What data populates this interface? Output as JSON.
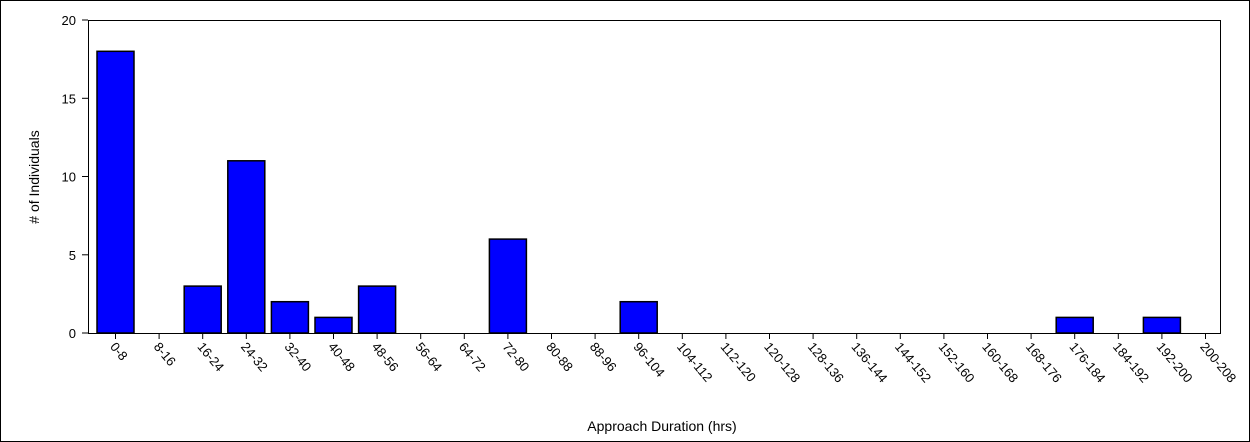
{
  "chart_data": {
    "type": "bar",
    "title": "",
    "xlabel": "Approach Duration (hrs)",
    "ylabel": "# of Individuals",
    "ylim": [
      0,
      20
    ],
    "yticks": [
      0,
      5,
      10,
      15,
      20
    ],
    "grid": false,
    "legend": "none",
    "bar_color": "#0000FF",
    "categories": [
      "0-8",
      "8-16",
      "16-24",
      "24-32",
      "32-40",
      "40-48",
      "48-56",
      "56-64",
      "64-72",
      "72-80",
      "80-88",
      "88-96",
      "96-104",
      "104-112",
      "112-120",
      "120-128",
      "128-136",
      "136-144",
      "144-152",
      "152-160",
      "160-168",
      "168-176",
      "176-184",
      "184-192",
      "192-200",
      "200-208"
    ],
    "values": [
      18,
      0,
      3,
      11,
      2,
      1,
      3,
      0,
      0,
      6,
      0,
      0,
      2,
      0,
      0,
      0,
      0,
      0,
      0,
      0,
      0,
      0,
      1,
      0,
      1,
      0
    ]
  }
}
